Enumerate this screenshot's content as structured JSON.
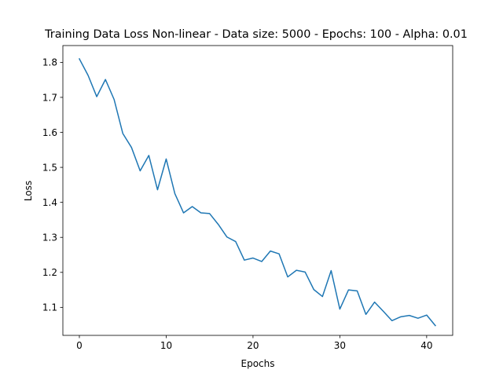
{
  "chart_data": {
    "type": "line",
    "title": "Training Data Loss Non-linear - Data size: 5000 - Epochs: 100 - Alpha: 0.01",
    "xlabel": "Epochs",
    "ylabel": "Loss",
    "xlim": [
      -1.9,
      43.0
    ],
    "ylim": [
      1.02,
      1.848
    ],
    "xticks": [
      0,
      10,
      20,
      30,
      40
    ],
    "yticks": [
      1.1,
      1.2,
      1.3,
      1.4,
      1.5,
      1.6,
      1.7,
      1.8
    ],
    "ytick_labels": [
      "1.1",
      "1.2",
      "1.3",
      "1.4",
      "1.5",
      "1.6",
      "1.7",
      "1.8"
    ],
    "xtick_labels": [
      "0",
      "10",
      "20",
      "30",
      "40"
    ],
    "grid": false,
    "color": "#1f77b4",
    "series": [
      {
        "x": [
          0,
          1,
          2,
          3,
          4,
          5,
          6,
          7,
          8,
          9,
          10,
          11,
          12,
          13,
          14,
          15,
          16,
          17,
          18,
          19,
          20,
          21,
          22,
          23,
          24,
          25,
          26,
          27,
          28,
          29,
          30,
          31,
          32,
          33,
          34,
          35,
          36,
          37,
          38,
          39,
          40,
          41
        ],
        "values": [
          1.81,
          1.763,
          1.702,
          1.751,
          1.694,
          1.597,
          1.557,
          1.49,
          1.534,
          1.436,
          1.524,
          1.425,
          1.37,
          1.388,
          1.37,
          1.368,
          1.337,
          1.301,
          1.288,
          1.235,
          1.241,
          1.231,
          1.261,
          1.253,
          1.187,
          1.206,
          1.201,
          1.151,
          1.131,
          1.205,
          1.095,
          1.15,
          1.147,
          1.08,
          1.115,
          1.089,
          1.062,
          1.073,
          1.077,
          1.069,
          1.078,
          1.048
        ]
      }
    ]
  }
}
